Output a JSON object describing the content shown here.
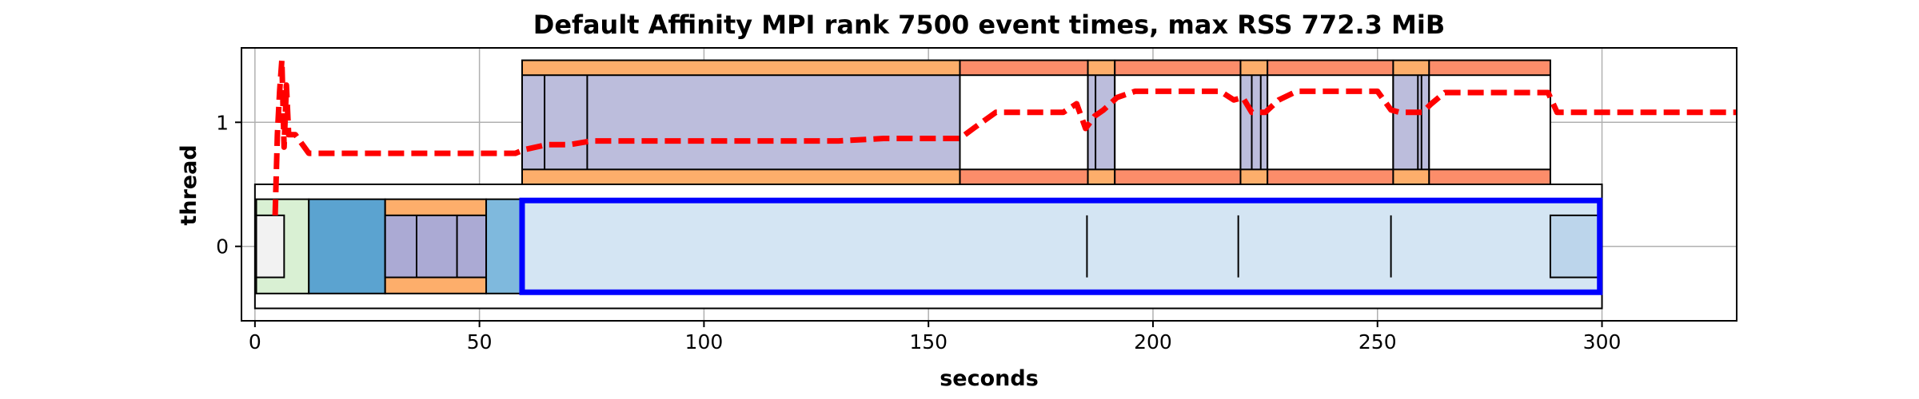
{
  "chart_data": {
    "type": "timeline",
    "title": "Default Affinity MPI rank 7500 event times, max RSS 772.3 MiB",
    "xlabel": "seconds",
    "ylabel": "thread",
    "xlim": [
      -3,
      330
    ],
    "ylim": [
      -0.6,
      1.6
    ],
    "x_ticks": [
      0,
      50,
      100,
      150,
      200,
      250,
      300
    ],
    "y_ticks": [
      0,
      1
    ],
    "grid": true,
    "colors": {
      "outline": "#000000",
      "rss_line": "#ff0000",
      "highlight": "#0000ff",
      "light_gray": "#f2f2f2",
      "light_green": "#d9f0d3",
      "steel_blue": "#5ba3d0",
      "lavender": "#bcbddc",
      "lavender_dark": "#abaad4",
      "orange": "#fdae6b",
      "salmon": "#fc8d6a",
      "sky": "#7fb9dd",
      "pale_blue": "#d4e5f3",
      "mid_blue": "#bcd5eb"
    },
    "spans": [
      {
        "x0": 0,
        "x1": 300,
        "y0": -0.5,
        "y1": 0.5,
        "fill": "#ffffff"
      },
      {
        "x0": 0.3,
        "x1": 12,
        "y0": -0.38,
        "y1": 0.38,
        "fill": "#d9f0d3"
      },
      {
        "x0": 0.3,
        "x1": 6.5,
        "y0": -0.25,
        "y1": 0.25,
        "fill": "#f2f2f2"
      },
      {
        "x0": 12,
        "x1": 29,
        "y0": -0.38,
        "y1": 0.38,
        "fill": "#5ba3d0"
      },
      {
        "x0": 29,
        "x1": 51.5,
        "y0": -0.38,
        "y1": 0.38,
        "fill": "#fdae6b"
      },
      {
        "x0": 29,
        "x1": 51.5,
        "y0": -0.25,
        "y1": 0.25,
        "fill": "#abaad4"
      },
      {
        "x0": 36,
        "x1": 36,
        "y0": -0.25,
        "y1": 0.25,
        "fill": "none"
      },
      {
        "x0": 45,
        "x1": 45,
        "y0": -0.25,
        "y1": 0.25,
        "fill": "none"
      },
      {
        "x0": 51.5,
        "x1": 59.5,
        "y0": -0.38,
        "y1": 0.38,
        "fill": "#7fb9dd"
      },
      {
        "x0": 59.5,
        "x1": 300,
        "y0": -0.38,
        "y1": 0.38,
        "fill": "#d4e5f3"
      },
      {
        "x0": 288.5,
        "x1": 299.5,
        "y0": -0.25,
        "y1": 0.25,
        "fill": "#bcd5eb"
      },
      {
        "x0": 185.3,
        "x1": 185.3,
        "y0": -0.25,
        "y1": 0.25,
        "fill": "none"
      },
      {
        "x0": 219,
        "x1": 219,
        "y0": -0.25,
        "y1": 0.25,
        "fill": "none"
      },
      {
        "x0": 253,
        "x1": 253,
        "y0": -0.25,
        "y1": 0.25,
        "fill": "none"
      },
      {
        "x0": 59.5,
        "x1": 157,
        "y0": 0.5,
        "y1": 1.5,
        "fill": "#fdae6b"
      },
      {
        "x0": 59.5,
        "x1": 157,
        "y0": 0.62,
        "y1": 1.38,
        "fill": "#bcbddc"
      },
      {
        "x0": 64.5,
        "x1": 64.5,
        "y0": 0.62,
        "y1": 1.38,
        "fill": "none"
      },
      {
        "x0": 74,
        "x1": 74,
        "y0": 0.62,
        "y1": 1.38,
        "fill": "none"
      },
      {
        "x0": 157,
        "x1": 185.5,
        "y0": 0.5,
        "y1": 1.5,
        "fill": "#fc8d6a"
      },
      {
        "x0": 157,
        "x1": 185.5,
        "y0": 0.62,
        "y1": 1.38,
        "fill": "#ffffff"
      },
      {
        "x0": 185.5,
        "x1": 191.5,
        "y0": 0.5,
        "y1": 1.5,
        "fill": "#fdae6b"
      },
      {
        "x0": 185.5,
        "x1": 191.5,
        "y0": 0.62,
        "y1": 1.38,
        "fill": "#bcbddc"
      },
      {
        "x0": 187.2,
        "x1": 187.2,
        "y0": 0.62,
        "y1": 1.38,
        "fill": "none"
      },
      {
        "x0": 191.5,
        "x1": 219.5,
        "y0": 0.5,
        "y1": 1.5,
        "fill": "#fc8d6a"
      },
      {
        "x0": 191.5,
        "x1": 219.5,
        "y0": 0.62,
        "y1": 1.38,
        "fill": "#ffffff"
      },
      {
        "x0": 219.5,
        "x1": 225.5,
        "y0": 0.5,
        "y1": 1.5,
        "fill": "#fdae6b"
      },
      {
        "x0": 219.5,
        "x1": 225.5,
        "y0": 0.62,
        "y1": 1.38,
        "fill": "#bcbddc"
      },
      {
        "x0": 222,
        "x1": 222,
        "y0": 0.62,
        "y1": 1.38,
        "fill": "none"
      },
      {
        "x0": 224,
        "x1": 224,
        "y0": 0.62,
        "y1": 1.38,
        "fill": "none"
      },
      {
        "x0": 225.5,
        "x1": 253.5,
        "y0": 0.5,
        "y1": 1.5,
        "fill": "#fc8d6a"
      },
      {
        "x0": 225.5,
        "x1": 253.5,
        "y0": 0.62,
        "y1": 1.38,
        "fill": "#ffffff"
      },
      {
        "x0": 253.5,
        "x1": 261.5,
        "y0": 0.5,
        "y1": 1.5,
        "fill": "#fdae6b"
      },
      {
        "x0": 253.5,
        "x1": 261.5,
        "y0": 0.62,
        "y1": 1.38,
        "fill": "#bcbddc"
      },
      {
        "x0": 259,
        "x1": 259,
        "y0": 0.62,
        "y1": 1.38,
        "fill": "none"
      },
      {
        "x0": 259.8,
        "x1": 259.8,
        "y0": 0.62,
        "y1": 1.38,
        "fill": "none"
      },
      {
        "x0": 261.5,
        "x1": 288.5,
        "y0": 0.5,
        "y1": 1.5,
        "fill": "#fc8d6a"
      },
      {
        "x0": 261.5,
        "x1": 288.5,
        "y0": 0.62,
        "y1": 1.38,
        "fill": "#ffffff"
      }
    ],
    "highlight_box": {
      "x0": 59.5,
      "x1": 299.5,
      "y0": -0.37,
      "y1": 0.37
    },
    "rss_series": {
      "x": [
        4.5,
        5,
        5.5,
        6,
        6.5,
        7,
        7.5,
        8,
        9,
        10,
        12,
        15,
        20,
        30,
        40,
        50,
        55,
        58,
        60,
        65,
        70,
        75,
        80,
        90,
        100,
        110,
        120,
        130,
        140,
        150,
        157,
        160,
        165,
        170,
        180,
        183,
        185,
        187,
        189,
        192,
        196,
        200,
        210,
        215,
        218,
        220,
        222,
        225,
        228,
        232,
        240,
        250,
        253,
        255,
        258,
        260,
        262,
        265,
        270,
        280,
        288,
        290,
        300,
        310,
        320,
        330
      ],
      "y": [
        0.25,
        0.9,
        1.25,
        1.5,
        0.8,
        1.3,
        0.9,
        0.9,
        0.9,
        0.85,
        0.75,
        0.75,
        0.75,
        0.75,
        0.75,
        0.75,
        0.75,
        0.75,
        0.78,
        0.82,
        0.82,
        0.85,
        0.85,
        0.85,
        0.85,
        0.85,
        0.85,
        0.85,
        0.87,
        0.87,
        0.87,
        0.95,
        1.08,
        1.08,
        1.08,
        1.15,
        0.95,
        1.05,
        1.1,
        1.2,
        1.25,
        1.25,
        1.25,
        1.25,
        1.18,
        1.2,
        1.08,
        1.08,
        1.18,
        1.25,
        1.25,
        1.25,
        1.1,
        1.08,
        1.08,
        1.08,
        1.15,
        1.24,
        1.24,
        1.24,
        1.24,
        1.08,
        1.08,
        1.08,
        1.08,
        1.08
      ]
    }
  }
}
